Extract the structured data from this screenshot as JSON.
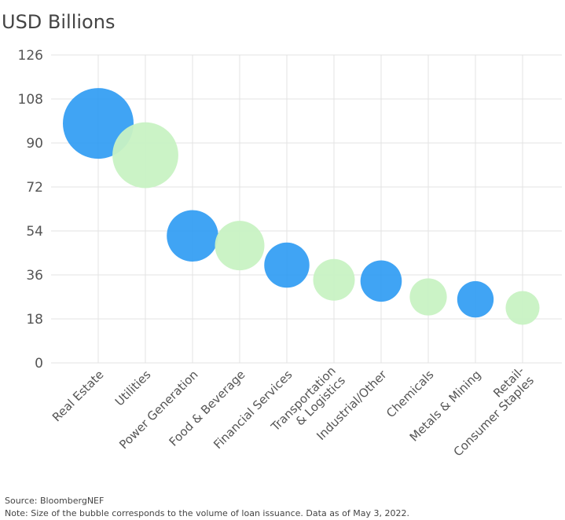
{
  "chart_data": {
    "type": "bubble",
    "ylabel": "USD Billions",
    "ylim": [
      0,
      126
    ],
    "yticks": [
      0,
      18,
      36,
      54,
      72,
      90,
      108,
      126
    ],
    "grid": true,
    "categories": [
      "Real Estate",
      "Utilities",
      "Power Generation",
      "Food & Beverage",
      "Financial Services",
      "Transportation\n& Logistics",
      "Industrial/Other",
      "Chemicals",
      "Metals & Mining",
      "Retail-\nConsumer Staples"
    ],
    "values": [
      98,
      85,
      52,
      48,
      40,
      34,
      33.5,
      27,
      26,
      22.5
    ],
    "colors": [
      "#2b9af3",
      "#c8f2c3",
      "#2b9af3",
      "#c8f2c3",
      "#2b9af3",
      "#c8f2c3",
      "#2b9af3",
      "#c8f2c3",
      "#2b9af3",
      "#c8f2c3"
    ]
  },
  "footer": {
    "source": "Source: BloombergNEF",
    "note": "Note: Size of the bubble corresponds to the volume of loan issuance. Data as of May 3, 2022."
  }
}
